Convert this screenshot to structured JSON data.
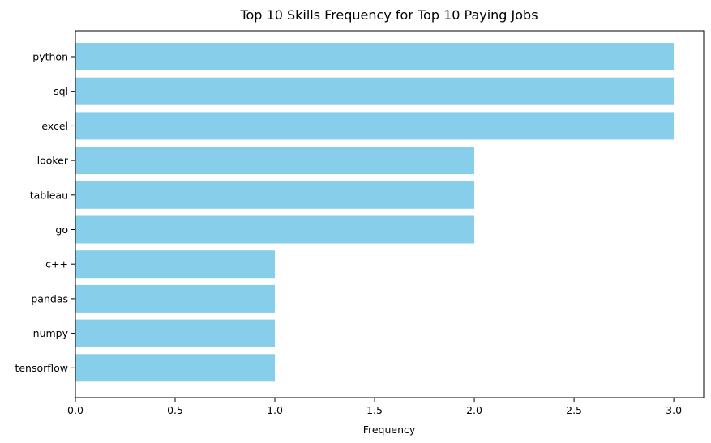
{
  "chart_data": {
    "type": "bar",
    "orientation": "horizontal",
    "title": "Top 10 Skills Frequency for Top 10 Paying Jobs",
    "xlabel": "Frequency",
    "ylabel": "",
    "categories": [
      "python",
      "sql",
      "excel",
      "looker",
      "tableau",
      "go",
      "c++",
      "pandas",
      "numpy",
      "tensorflow"
    ],
    "values": [
      3,
      3,
      3,
      2,
      2,
      2,
      1,
      1,
      1,
      1
    ],
    "xlim": [
      0,
      3.15
    ],
    "x_ticks": [
      0.0,
      0.5,
      1.0,
      1.5,
      2.0,
      2.5,
      3.0
    ],
    "x_tick_labels": [
      "0.0",
      "0.5",
      "1.0",
      "1.5",
      "2.0",
      "2.5",
      "3.0"
    ],
    "bar_color": "#87CEEB",
    "grid": false,
    "legend": "none"
  }
}
